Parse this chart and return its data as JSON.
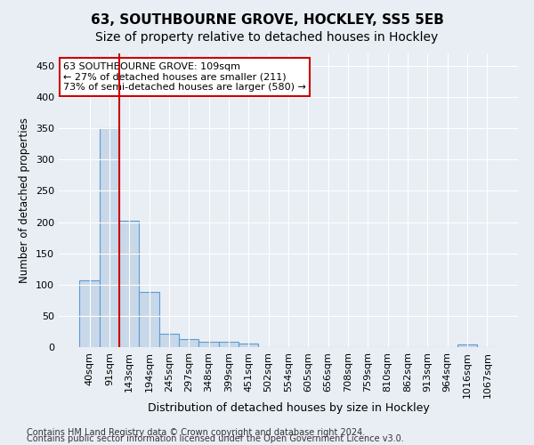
{
  "title1": "63, SOUTHBOURNE GROVE, HOCKLEY, SS5 5EB",
  "title2": "Size of property relative to detached houses in Hockley",
  "xlabel": "Distribution of detached houses by size in Hockley",
  "ylabel": "Number of detached properties",
  "categories": [
    "40sqm",
    "91sqm",
    "143sqm",
    "194sqm",
    "245sqm",
    "297sqm",
    "348sqm",
    "399sqm",
    "451sqm",
    "502sqm",
    "554sqm",
    "605sqm",
    "656sqm",
    "708sqm",
    "759sqm",
    "810sqm",
    "862sqm",
    "913sqm",
    "964sqm",
    "1016sqm",
    "1067sqm"
  ],
  "values": [
    107,
    350,
    202,
    88,
    22,
    13,
    8,
    8,
    5,
    0,
    0,
    0,
    0,
    0,
    0,
    0,
    0,
    0,
    0,
    4,
    0
  ],
  "bar_color": "#c8d8e8",
  "bar_edge_color": "#5b9bd5",
  "vline_x_index": 1.5,
  "vline_color": "#cc0000",
  "annotation_text": "63 SOUTHBOURNE GROVE: 109sqm\n← 27% of detached houses are smaller (211)\n73% of semi-detached houses are larger (580) →",
  "annotation_box_color": "white",
  "annotation_box_edge_color": "#cc0000",
  "yticks": [
    0,
    50,
    100,
    150,
    200,
    250,
    300,
    350,
    400,
    450
  ],
  "ylim": [
    0,
    470
  ],
  "footnote1": "Contains HM Land Registry data © Crown copyright and database right 2024.",
  "footnote2": "Contains public sector information licensed under the Open Government Licence v3.0.",
  "background_color": "#e8eef4",
  "plot_bg_color": "#e8eef4",
  "grid_color": "white",
  "title1_fontsize": 11,
  "title2_fontsize": 10,
  "xlabel_fontsize": 9,
  "ylabel_fontsize": 8.5,
  "tick_fontsize": 8,
  "footnote_fontsize": 7
}
